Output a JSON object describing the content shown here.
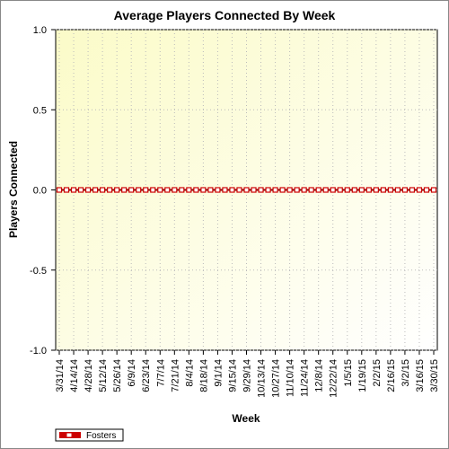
{
  "chart_data": {
    "type": "line",
    "title": "Average Players Connected By Week",
    "x_label": "Week",
    "y_label": "Players Connected",
    "categories": [
      "3/31/14",
      null,
      "4/14/14",
      null,
      "4/28/14",
      null,
      "5/12/14",
      null,
      "5/26/14",
      null,
      "6/9/14",
      null,
      "6/23/14",
      null,
      "7/7/14",
      null,
      "7/21/14",
      null,
      "8/4/14",
      null,
      "8/18/14",
      null,
      "9/1/14",
      null,
      "9/15/14",
      null,
      "9/29/14",
      null,
      "10/13/14",
      null,
      "10/27/14",
      null,
      "11/10/14",
      null,
      "11/24/14",
      null,
      "12/8/14",
      null,
      "12/22/14",
      null,
      "1/5/15",
      null,
      "1/19/15",
      null,
      "2/2/15",
      null,
      "2/16/15",
      null,
      "3/2/15",
      null,
      "3/16/15",
      null,
      "3/30/15"
    ],
    "series": [
      {
        "name": "Fosters",
        "color": "#cc0000",
        "values": [
          0,
          0,
          0,
          0,
          0,
          0,
          0,
          0,
          0,
          0,
          0,
          0,
          0,
          0,
          0,
          0,
          0,
          0,
          0,
          0,
          0,
          0,
          0,
          0,
          0,
          0,
          0,
          0,
          0,
          0,
          0,
          0,
          0,
          0,
          0,
          0,
          0,
          0,
          0,
          0,
          0,
          0,
          0,
          0,
          0,
          0,
          0,
          0,
          0,
          0,
          0,
          0,
          0
        ]
      }
    ],
    "ylim": [
      -1,
      1
    ],
    "yticks": [
      {
        "value": -1,
        "label": "-1.0"
      },
      -0.5,
      {
        "value": 0,
        "label": "0.0"
      },
      0.5,
      {
        "value": 1,
        "label": "1.0"
      }
    ],
    "grid": true
  }
}
